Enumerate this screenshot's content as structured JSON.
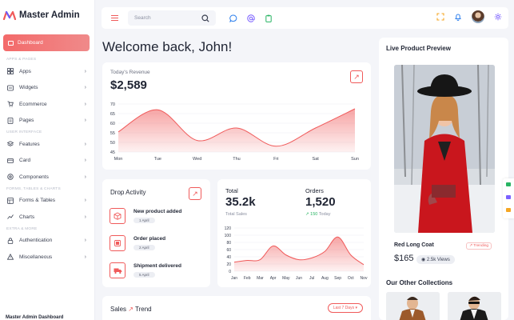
{
  "brand": {
    "name": "Master Admin"
  },
  "sidebar": {
    "active": "Dashboard",
    "sections": [
      {
        "title": "APPS & PAGES",
        "items": [
          "Apps",
          "Widgets",
          "Ecommerce",
          "Pages"
        ]
      },
      {
        "title": "USER INTERFACE",
        "items": [
          "Features",
          "Card",
          "Components"
        ]
      },
      {
        "title": "FORMS, TABLES & CHARTS",
        "items": [
          "Forms & Tables",
          "Charts"
        ]
      },
      {
        "title": "EXTRA & MORE",
        "items": [
          "Authentication",
          "Miscellaneous"
        ]
      }
    ],
    "footer": "Master Admin Dashboard"
  },
  "topbar": {
    "search_placeholder": "Search"
  },
  "welcome": "Welcome back, John!",
  "revenue": {
    "label": "Today's Revenue",
    "value": "$2,589"
  },
  "drop_activity": {
    "title": "Drop Activity",
    "items": [
      {
        "title": "New product added",
        "date": "1 April"
      },
      {
        "title": "Order placed",
        "date": "2 April"
      },
      {
        "title": "Shipment delivered",
        "date": "5 April"
      }
    ]
  },
  "stats": {
    "total_label": "Total",
    "total_value": "35.2k",
    "total_sub": "Total Sales",
    "orders_label": "Orders",
    "orders_value": "1,520",
    "orders_change": "150",
    "orders_sub": "Today"
  },
  "sales": {
    "title": "Sales",
    "range": "Last 7 Days"
  },
  "preview": {
    "title": "Live Product Preview",
    "product_name": "Red Long Coat",
    "badge": "Trending",
    "price": "$165",
    "views": "2.5k Views",
    "collections_title": "Our Other Collections"
  },
  "colors": {
    "accent": "#f05a5a",
    "accent_light": "#fbd3cf",
    "positive": "#28b463"
  },
  "chart_data": [
    {
      "type": "area",
      "categories": [
        "Mon",
        "Tue",
        "Wed",
        "Thu",
        "Fri",
        "Sat",
        "Sun"
      ],
      "y_ticks": [
        70,
        65,
        60,
        55,
        50,
        45
      ],
      "ylim": [
        45,
        70
      ],
      "values": [
        55.5,
        67,
        51,
        57.5,
        48,
        57.5,
        67.5
      ]
    },
    {
      "type": "area",
      "categories": [
        "Jan",
        "Feb",
        "Mar",
        "Apr",
        "May",
        "Jun",
        "Jul",
        "Aug",
        "Sep",
        "Oct",
        "Nov"
      ],
      "y_ticks": [
        120,
        100,
        80,
        60,
        40,
        20,
        0
      ],
      "ylim": [
        0,
        120
      ],
      "values": [
        25,
        30,
        32,
        70,
        45,
        32,
        37,
        55,
        95,
        45,
        18
      ]
    }
  ]
}
